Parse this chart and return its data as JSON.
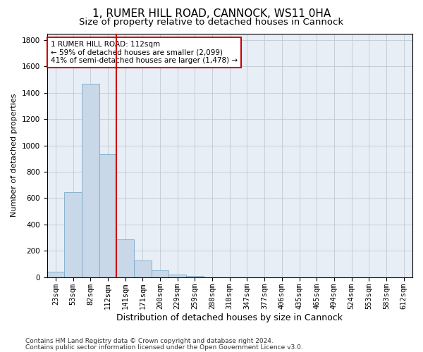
{
  "title1": "1, RUMER HILL ROAD, CANNOCK, WS11 0HA",
  "title2": "Size of property relative to detached houses in Cannock",
  "xlabel": "Distribution of detached houses by size in Cannock",
  "ylabel": "Number of detached properties",
  "categories": [
    "23sqm",
    "53sqm",
    "82sqm",
    "112sqm",
    "141sqm",
    "171sqm",
    "200sqm",
    "229sqm",
    "259sqm",
    "288sqm",
    "318sqm",
    "347sqm",
    "377sqm",
    "406sqm",
    "435sqm",
    "465sqm",
    "494sqm",
    "524sqm",
    "553sqm",
    "583sqm",
    "612sqm"
  ],
  "bar_heights": [
    40,
    645,
    1470,
    935,
    285,
    125,
    55,
    22,
    12,
    0,
    0,
    0,
    0,
    0,
    0,
    0,
    0,
    0,
    0,
    0,
    0
  ],
  "bar_color": "#c8d8e8",
  "bar_edge_color": "#7aaac8",
  "vline_x": 3.5,
  "vline_color": "#cc0000",
  "annotation_text": "1 RUMER HILL ROAD: 112sqm\n← 59% of detached houses are smaller (2,099)\n41% of semi-detached houses are larger (1,478) →",
  "annotation_box_color": "#ffffff",
  "annotation_box_edge": "#cc0000",
  "ylim": [
    0,
    1850
  ],
  "yticks": [
    0,
    200,
    400,
    600,
    800,
    1000,
    1200,
    1400,
    1600,
    1800
  ],
  "footer1": "Contains HM Land Registry data © Crown copyright and database right 2024.",
  "footer2": "Contains public sector information licensed under the Open Government Licence v3.0.",
  "bg_color": "#ffffff",
  "plot_bg_color": "#e8eef5",
  "grid_color": "#c0c8d4",
  "title1_fontsize": 11,
  "title2_fontsize": 9.5,
  "xlabel_fontsize": 9,
  "ylabel_fontsize": 8,
  "tick_fontsize": 7.5,
  "footer_fontsize": 6.5,
  "annot_fontsize": 7.5
}
